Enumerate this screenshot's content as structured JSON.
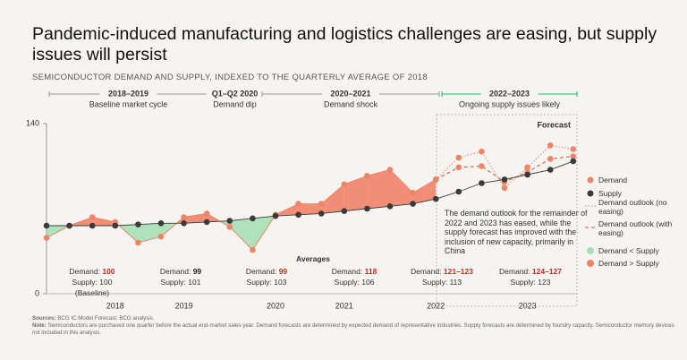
{
  "title": "Pandemic-induced manufacturing and logistics challenges are easing, but supply issues will persist",
  "chart_data": {
    "type": "line",
    "subtitle": "SEMICONDUCTOR DEMAND AND SUPPLY, INDEXED TO THE QUARTERLY AVERAGE OF 2018",
    "categories": [
      null,
      null,
      null,
      "2018",
      null,
      null,
      "2019",
      null,
      null,
      null,
      "2020",
      null,
      null,
      "2021",
      null,
      null,
      null,
      "2022",
      null,
      null,
      null,
      "2023",
      null,
      null
    ],
    "ylim": [
      0,
      140
    ],
    "yticks": [
      0,
      140
    ],
    "series": [
      {
        "name": "Demand",
        "color": "#ef8468",
        "style": "solid",
        "markers": true,
        "values": [
          46,
          56,
          63,
          59,
          42,
          47,
          63,
          66,
          55,
          36,
          65,
          74,
          74,
          90,
          97,
          102,
          83,
          94,
          null,
          null,
          null,
          null,
          null,
          null
        ]
      },
      {
        "name": "Supply",
        "color": "#3a3a3a",
        "style": "solid",
        "markers": true,
        "values": [
          56,
          56,
          56,
          56,
          57,
          58,
          58,
          59,
          60,
          62,
          64,
          65,
          66,
          68,
          70,
          72,
          74,
          78,
          84,
          91,
          94,
          98,
          102,
          109
        ]
      },
      {
        "name": "Demand outlook (no easing)",
        "color": "#ef8468",
        "style": "dotted",
        "markers": true,
        "values": [
          null,
          null,
          null,
          null,
          null,
          null,
          null,
          null,
          null,
          null,
          null,
          null,
          null,
          null,
          null,
          null,
          null,
          94,
          112,
          117,
          87,
          104,
          122,
          119
        ]
      },
      {
        "name": "Demand outlook (with easing)",
        "color": "#d0503f",
        "style": "dashed",
        "markers": true,
        "values": [
          null,
          null,
          null,
          null,
          null,
          null,
          null,
          null,
          null,
          null,
          null,
          null,
          null,
          null,
          null,
          null,
          null,
          94,
          104,
          105,
          92,
          100,
          111,
          113
        ]
      }
    ],
    "fill_legend": [
      {
        "name": "Demand < Supply",
        "color": "#a6e0b4"
      },
      {
        "name": "Demand > Supply",
        "color": "#ef8468"
      }
    ],
    "forecast_label": "Forecast",
    "annotation": "The demand outlook for the remainder of 2022 and 2023 has eased, while the supply forecast has improved with the inclusion of new capacity, primarily in China",
    "periods": [
      {
        "title": "2018–2019",
        "subtitle": "Baseline market cycle",
        "color": "#999999"
      },
      {
        "title": "Q1–Q2 2020",
        "subtitle": "Demand dip",
        "color": "#999999"
      },
      {
        "title": "2020–2021",
        "subtitle": "Demand shock",
        "color": "#999999"
      },
      {
        "title": "2022–2023",
        "subtitle": "Ongoing supply issues likely",
        "color": "#2bb673"
      }
    ],
    "averages": {
      "title": "Averages",
      "demand_label": "Demand:",
      "supply_label": "Supply:",
      "items": [
        {
          "demand": 100,
          "supply": 100,
          "color": "#c8281e",
          "note": "(Baseline)"
        },
        {
          "demand": 99,
          "supply": 101,
          "color": "#222222"
        },
        {
          "demand": 99,
          "supply": 103,
          "color": "#c8281e"
        },
        {
          "demand": 118,
          "supply": 106,
          "color": "#c8281e"
        },
        {
          "demand": "121–123",
          "supply": 113,
          "color": "#c8281e"
        },
        {
          "demand": "124–127",
          "supply": 123,
          "color": "#c8281e"
        }
      ]
    }
  },
  "footer": {
    "sources_label": "Sources:",
    "sources": "BCG IC Model Forecast; BCG analysis.",
    "note_label": "Note:",
    "note": "Semiconductors are purchased one quarter before the actual end-market sales year. Demand forecasts are determined by expected demand of representative industries. Supply forecasts are determined by foundry capacity. Semiconductor memory devices not included in this analysis."
  }
}
